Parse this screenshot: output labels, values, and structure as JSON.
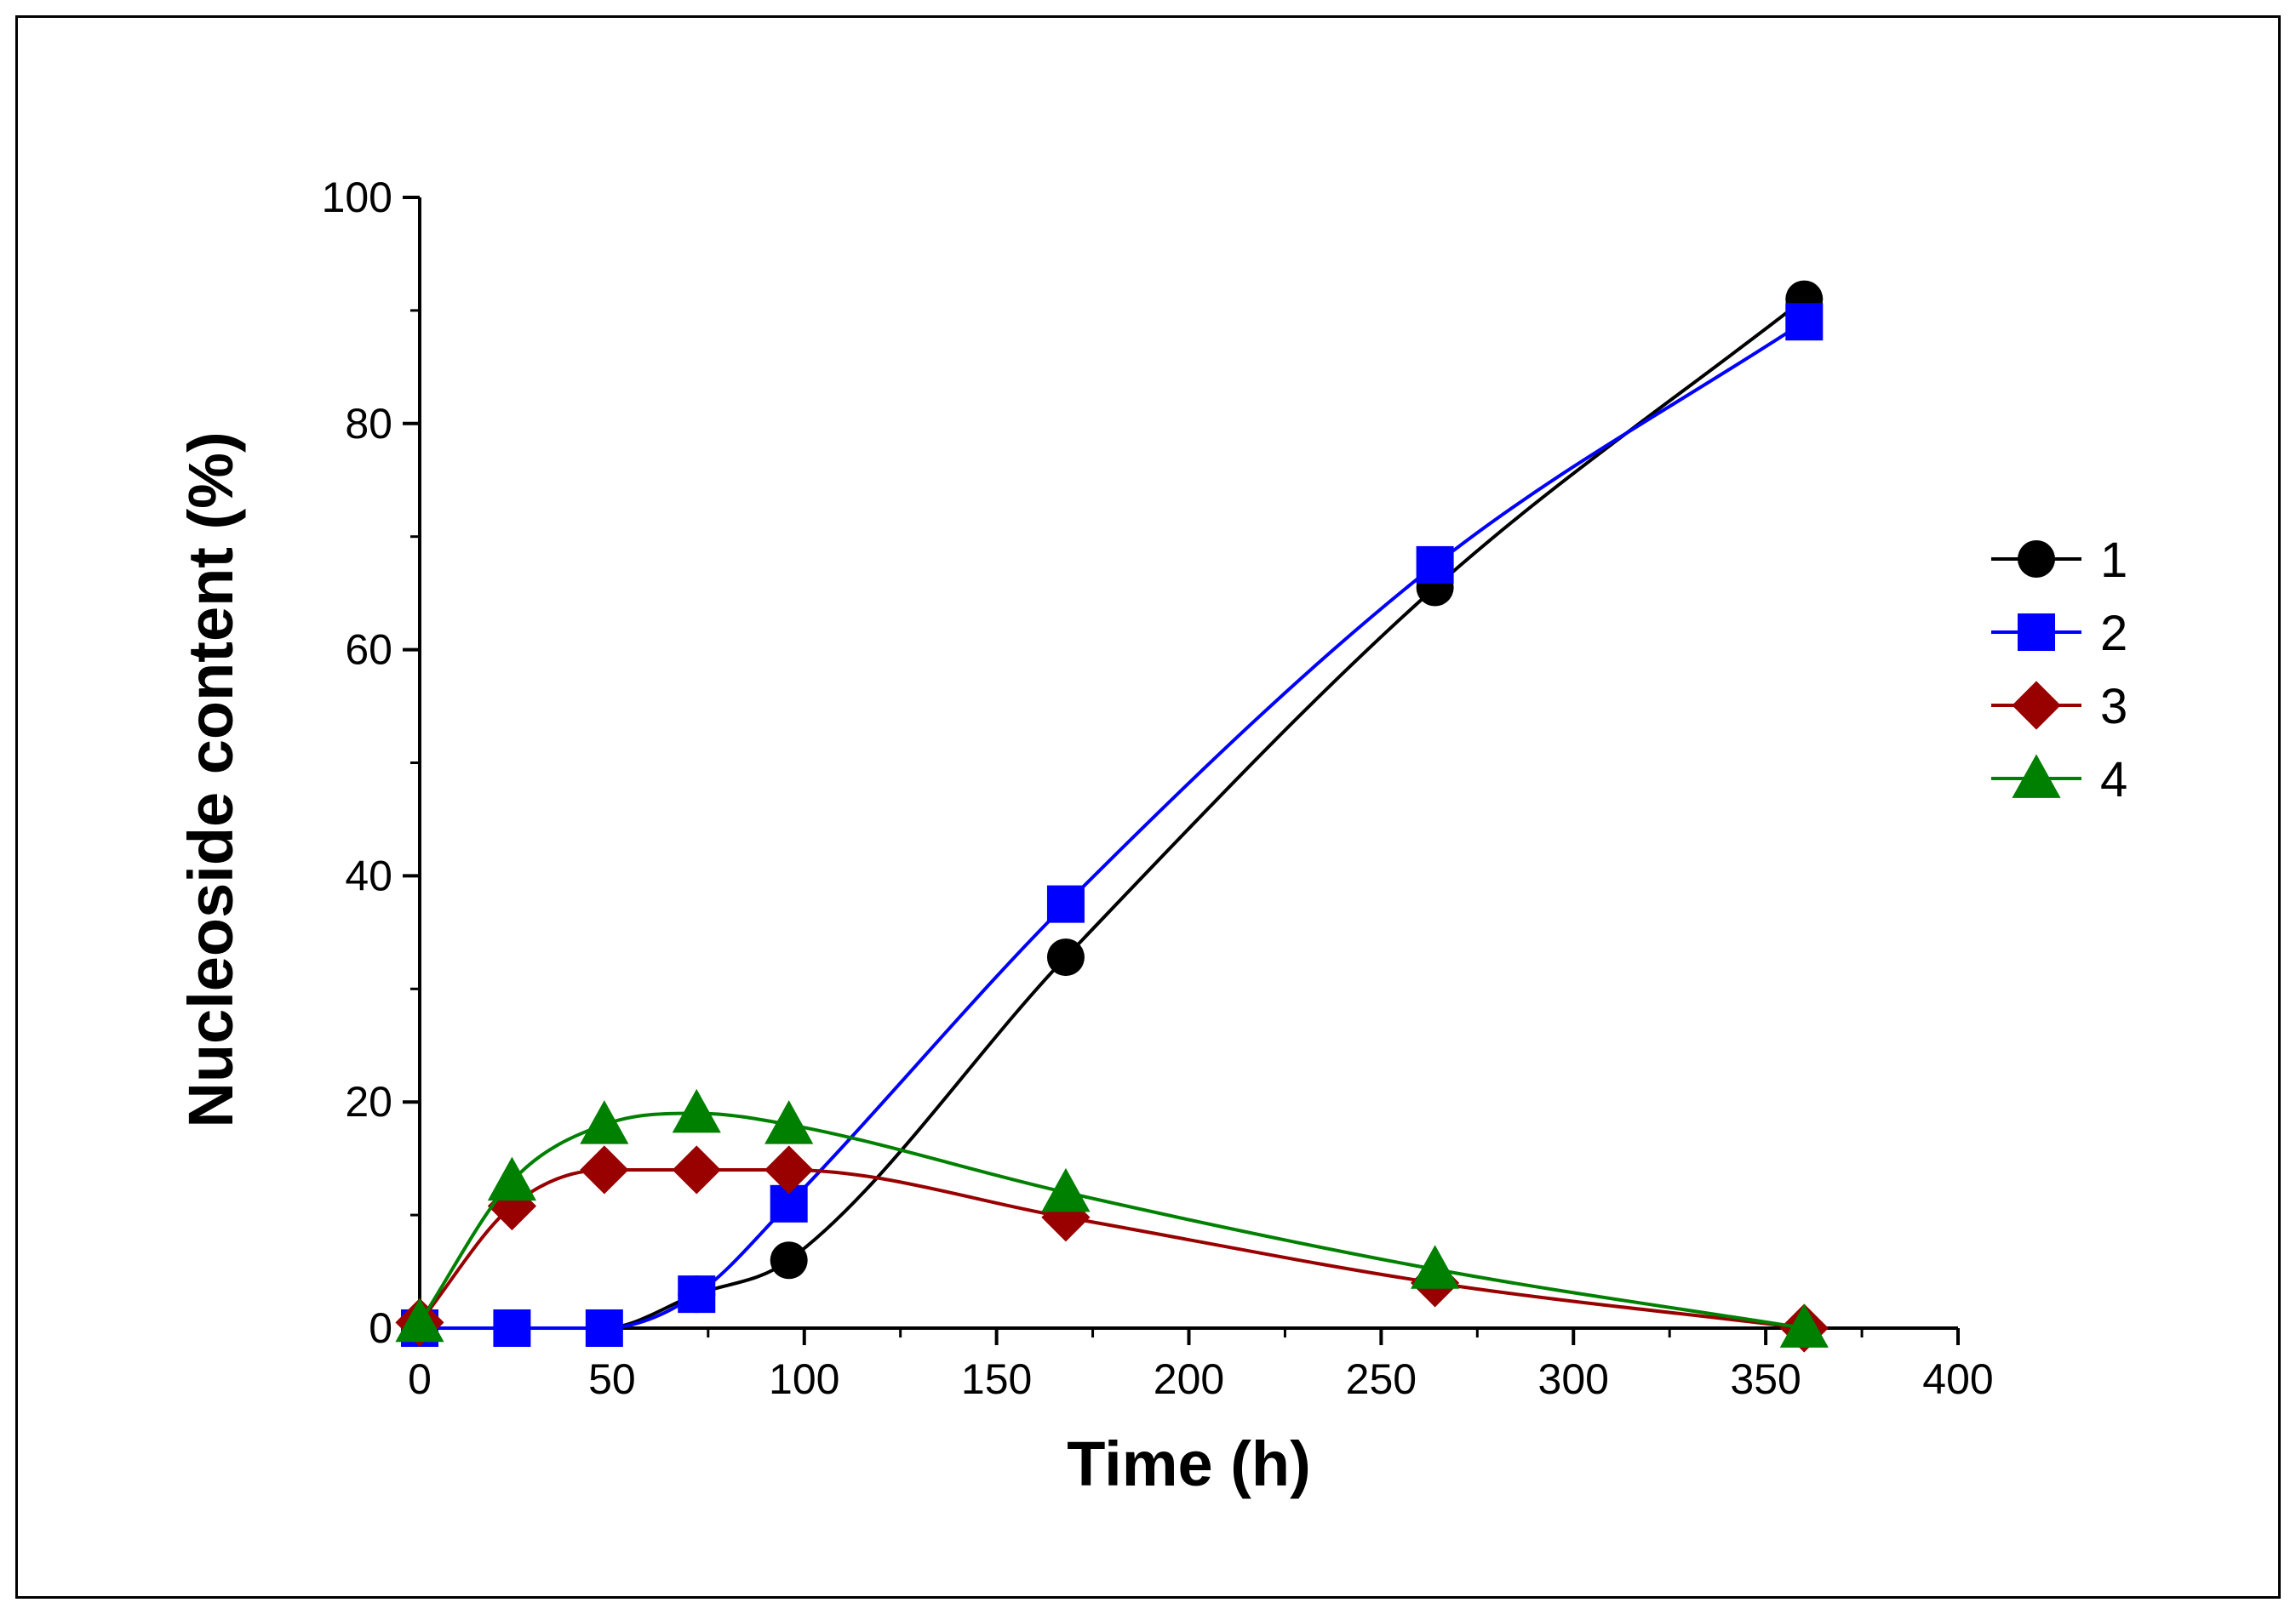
{
  "chart_data": {
    "type": "line",
    "title": "",
    "xlabel": "Time (h)",
    "ylabel": "Nucleoside content (%)",
    "xlim": [
      0,
      400
    ],
    "ylim": [
      0,
      100
    ],
    "xticks": [
      0,
      50,
      100,
      150,
      200,
      250,
      300,
      350,
      400
    ],
    "yticks": [
      0,
      20,
      40,
      60,
      80,
      100
    ],
    "grid": false,
    "legend_position": "right",
    "series": [
      {
        "name": "1",
        "color": "#000000",
        "marker": "circle",
        "x": [
          0,
          24,
          48,
          72,
          96,
          168,
          264,
          360
        ],
        "y": [
          0,
          0,
          0,
          3,
          6,
          32.8,
          65.5,
          91.0
        ]
      },
      {
        "name": "2",
        "color": "#0000ff",
        "marker": "square",
        "x": [
          0,
          24,
          48,
          72,
          96,
          168,
          264,
          360
        ],
        "y": [
          0,
          0,
          0,
          3,
          11,
          37.5,
          67.5,
          89.0
        ]
      },
      {
        "name": "3",
        "color": "#990000",
        "marker": "diamond",
        "x": [
          0,
          24,
          48,
          72,
          96,
          168,
          264,
          360
        ],
        "y": [
          0.5,
          10.8,
          14.0,
          14.0,
          14.0,
          9.8,
          4.0,
          0
        ]
      },
      {
        "name": "4",
        "color": "#008000",
        "marker": "triangle",
        "x": [
          0,
          24,
          48,
          72,
          96,
          168,
          264,
          360
        ],
        "y": [
          0.5,
          13.0,
          18.0,
          19.0,
          18.0,
          12.0,
          5.2,
          0
        ]
      }
    ]
  }
}
